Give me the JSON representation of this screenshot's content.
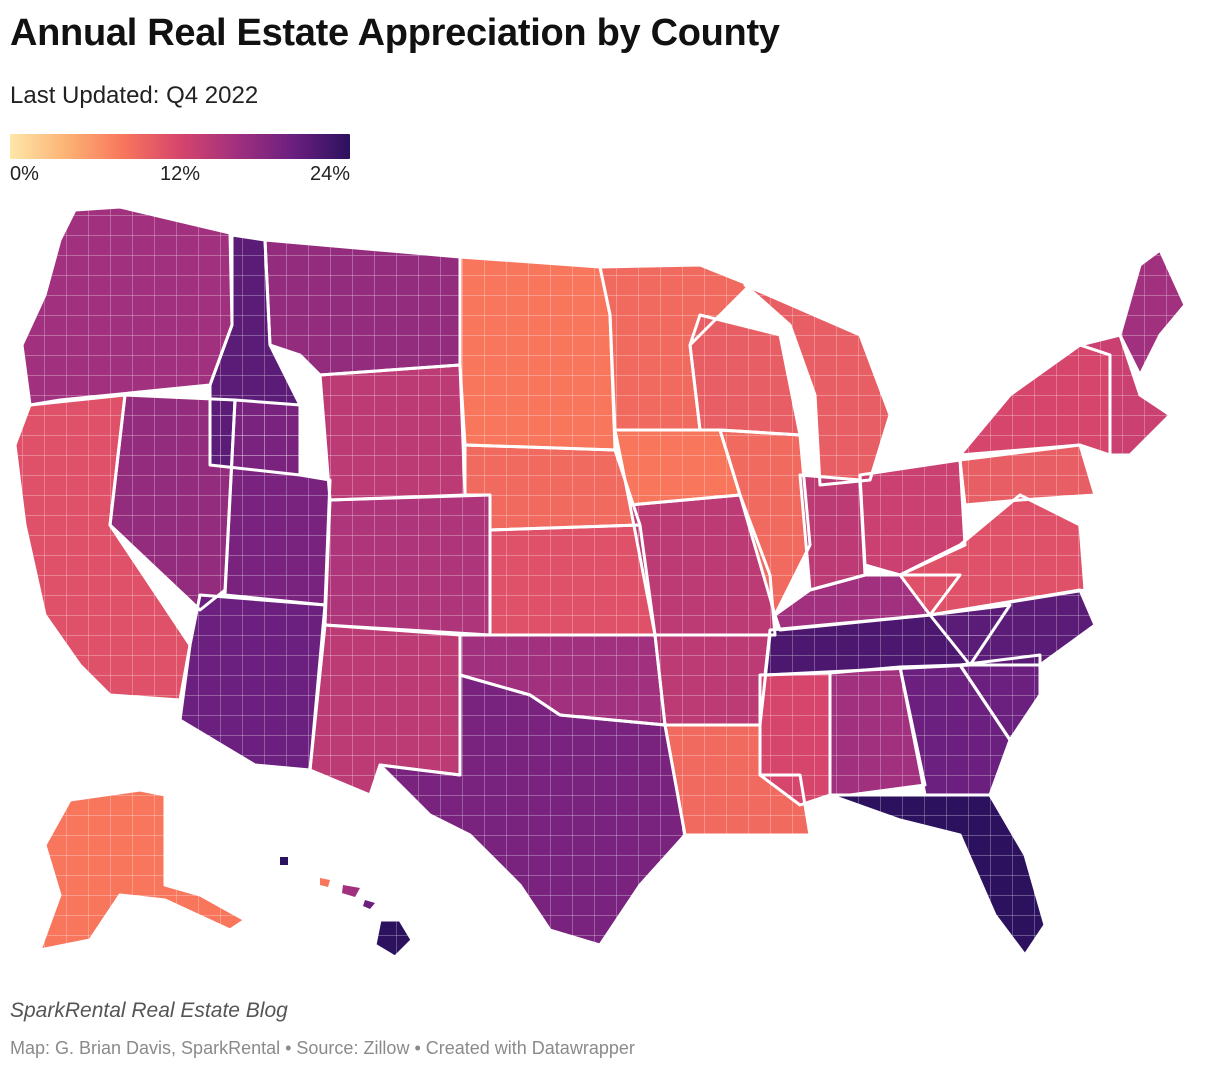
{
  "header": {
    "title": "Annual Real Estate Appreciation by County",
    "subtitle": "Last Updated: Q4 2022"
  },
  "legend": {
    "min_label": "0%",
    "mid_label": "12%",
    "max_label": "24%",
    "gradient_colors": [
      "#fde7a8",
      "#fcb274",
      "#f8765c",
      "#d6456c",
      "#a1307e",
      "#6b1f7f",
      "#2c115f"
    ]
  },
  "map": {
    "type": "choropleth",
    "no_data_color": "#dcdcdc",
    "regions": [
      {
        "name": "Northwest",
        "value": 16
      },
      {
        "name": "California",
        "value": 11
      },
      {
        "name": "Nevada",
        "value": 17
      },
      {
        "name": "Utah",
        "value": 19
      },
      {
        "name": "Idaho",
        "value": 21
      },
      {
        "name": "Montana",
        "value": 17
      },
      {
        "name": "Arizona",
        "value": 20
      },
      {
        "name": "New Mexico",
        "value": 14
      },
      {
        "name": "Colorado",
        "value": 15
      },
      {
        "name": "Wyoming",
        "value": 14
      },
      {
        "name": "Dakotas",
        "value": 8
      },
      {
        "name": "Nebraska",
        "value": 9
      },
      {
        "name": "Kansas",
        "value": 11
      },
      {
        "name": "Oklahoma",
        "value": 16
      },
      {
        "name": "Texas",
        "value": 19
      },
      {
        "name": "Minnesota",
        "value": 9
      },
      {
        "name": "Iowa",
        "value": 8
      },
      {
        "name": "Missouri",
        "value": 14
      },
      {
        "name": "Arkansas",
        "value": 14
      },
      {
        "name": "Louisiana",
        "value": 9
      },
      {
        "name": "Wisconsin",
        "value": 10
      },
      {
        "name": "Illinois",
        "value": 9
      },
      {
        "name": "Michigan",
        "value": 10
      },
      {
        "name": "Indiana",
        "value": 14
      },
      {
        "name": "Ohio",
        "value": 13
      },
      {
        "name": "Kentucky",
        "value": 16
      },
      {
        "name": "Tennessee",
        "value": 22
      },
      {
        "name": "Mississippi",
        "value": 12
      },
      {
        "name": "Alabama",
        "value": 16
      },
      {
        "name": "Georgia",
        "value": 20
      },
      {
        "name": "Florida",
        "value": 24
      },
      {
        "name": "South Carolina",
        "value": 20
      },
      {
        "name": "North Carolina",
        "value": 21
      },
      {
        "name": "Virginia",
        "value": 11
      },
      {
        "name": "Pennsylvania",
        "value": 10
      },
      {
        "name": "New York",
        "value": 12
      },
      {
        "name": "New England",
        "value": 13
      },
      {
        "name": "Maine",
        "value": 16
      },
      {
        "name": "Alaska",
        "value": 8
      },
      {
        "name": "Hawaii",
        "value": 24
      }
    ]
  },
  "footer": {
    "brand": "SparkRental Real Estate Blog",
    "source": "Map: G. Brian Davis, SparkRental • Source: Zillow • Created with Datawrapper"
  }
}
